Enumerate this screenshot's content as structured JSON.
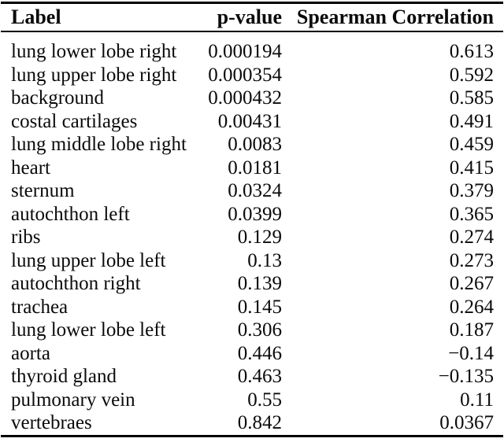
{
  "page": {
    "background": "#ffffff",
    "text_color": "#0a0a0a",
    "rule_color": "#000000"
  },
  "table": {
    "columns": [
      {
        "id": "label",
        "label": "Label",
        "align": "left"
      },
      {
        "id": "p_value",
        "label": "p-value",
        "align": "right"
      },
      {
        "id": "spearman",
        "label": "Spearman Correlation",
        "align": "right"
      }
    ],
    "rows": [
      {
        "label": "lung lower lobe right",
        "p_value": "0.000194",
        "spearman": "0.613"
      },
      {
        "label": "lung upper lobe right",
        "p_value": "0.000354",
        "spearman": "0.592"
      },
      {
        "label": "background",
        "p_value": "0.000432",
        "spearman": "0.585"
      },
      {
        "label": "costal cartilages",
        "p_value": "0.00431",
        "spearman": "0.491"
      },
      {
        "label": "lung middle lobe right",
        "p_value": "0.0083",
        "spearman": "0.459"
      },
      {
        "label": "heart",
        "p_value": "0.0181",
        "spearman": "0.415"
      },
      {
        "label": "sternum",
        "p_value": "0.0324",
        "spearman": "0.379"
      },
      {
        "label": "autochthon left",
        "p_value": "0.0399",
        "spearman": "0.365"
      },
      {
        "label": "ribs",
        "p_value": "0.129",
        "spearman": "0.274"
      },
      {
        "label": "lung upper lobe left",
        "p_value": "0.13",
        "spearman": "0.273"
      },
      {
        "label": "autochthon right",
        "p_value": "0.139",
        "spearman": "0.267"
      },
      {
        "label": "trachea",
        "p_value": "0.145",
        "spearman": "0.264"
      },
      {
        "label": "lung lower lobe left",
        "p_value": "0.306",
        "spearman": "0.187"
      },
      {
        "label": "aorta",
        "p_value": "0.446",
        "spearman": "−0.14"
      },
      {
        "label": "thyroid gland",
        "p_value": "0.463",
        "spearman": "−0.135"
      },
      {
        "label": "pulmonary vein",
        "p_value": "0.55",
        "spearman": "0.11"
      },
      {
        "label": "vertebraes",
        "p_value": "0.842",
        "spearman": "0.0367"
      }
    ]
  },
  "chart_data": {
    "type": "table",
    "title": "",
    "columns": [
      "Label",
      "p-value",
      "Spearman Correlation"
    ],
    "rows": [
      [
        "lung lower lobe right",
        0.000194,
        0.613
      ],
      [
        "lung upper lobe right",
        0.000354,
        0.592
      ],
      [
        "background",
        0.000432,
        0.585
      ],
      [
        "costal cartilages",
        0.00431,
        0.491
      ],
      [
        "lung middle lobe right",
        0.0083,
        0.459
      ],
      [
        "heart",
        0.0181,
        0.415
      ],
      [
        "sternum",
        0.0324,
        0.379
      ],
      [
        "autochthon left",
        0.0399,
        0.365
      ],
      [
        "ribs",
        0.129,
        0.274
      ],
      [
        "lung upper lobe left",
        0.13,
        0.273
      ],
      [
        "autochthon right",
        0.139,
        0.267
      ],
      [
        "trachea",
        0.145,
        0.264
      ],
      [
        "lung lower lobe left",
        0.306,
        0.187
      ],
      [
        "aorta",
        0.446,
        -0.14
      ],
      [
        "thyroid gland",
        0.463,
        -0.135
      ],
      [
        "pulmonary vein",
        0.55,
        0.11
      ],
      [
        "vertebraes",
        0.842,
        0.0367
      ]
    ]
  }
}
